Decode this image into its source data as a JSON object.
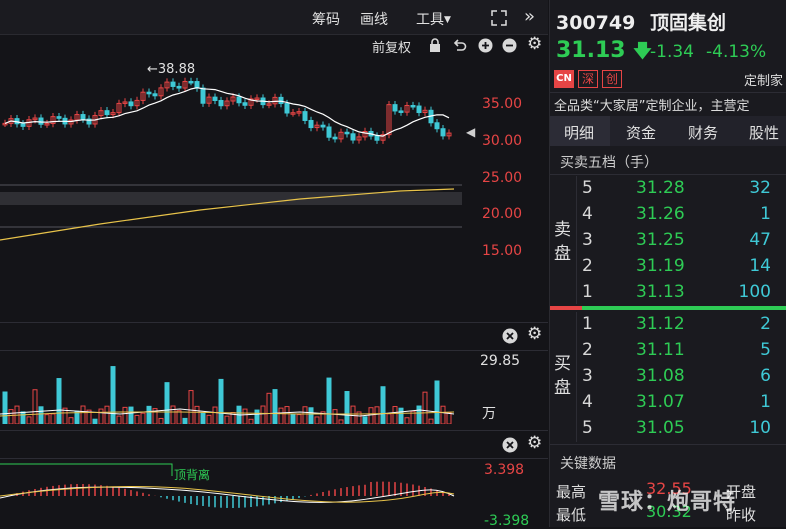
{
  "toolbar": {
    "chip_label": "筹码",
    "line_label": "画线",
    "tools_label": "工具",
    "adjust_label": "前复权"
  },
  "price_axis": [
    "35.00",
    "30.00",
    "25.00",
    "20.00",
    "15.00"
  ],
  "peak_label": "←38.88",
  "volume_axis": {
    "top": "29.85",
    "unit": "万"
  },
  "macd_axis": {
    "top": "3.398",
    "bottom": "-3.398",
    "annotation": "顶背离"
  },
  "quote": {
    "code": "300749",
    "name": "顶固集创",
    "price": "31.13",
    "change": "-1.34",
    "change_pct": "-4.13%",
    "badges": [
      "CN",
      "深",
      "创"
    ],
    "tag": "定制家",
    "desc": "全品类“大家居”定制企业，主营定"
  },
  "tabs": [
    "明细",
    "资金",
    "财务",
    "股性"
  ],
  "orderbook": {
    "title": "买卖五档（手）",
    "sell_label": [
      "卖",
      "盘"
    ],
    "buy_label": [
      "买",
      "盘"
    ],
    "sell": [
      {
        "level": "5",
        "price": "31.28",
        "vol": "32"
      },
      {
        "level": "4",
        "price": "31.26",
        "vol": "1"
      },
      {
        "level": "3",
        "price": "31.25",
        "vol": "47"
      },
      {
        "level": "2",
        "price": "31.19",
        "vol": "14"
      },
      {
        "level": "1",
        "price": "31.13",
        "vol": "100"
      }
    ],
    "buy": [
      {
        "level": "1",
        "price": "31.12",
        "vol": "2"
      },
      {
        "level": "2",
        "price": "31.11",
        "vol": "5"
      },
      {
        "level": "3",
        "price": "31.08",
        "vol": "6"
      },
      {
        "level": "4",
        "price": "31.07",
        "vol": "1"
      },
      {
        "level": "5",
        "price": "31.05",
        "vol": "10"
      }
    ]
  },
  "key_data": {
    "title": "关键数据",
    "high_label": "最高",
    "high": "32.55",
    "low_label": "最低",
    "low": "30.32",
    "open_label": "开盘",
    "prev_label": "昨收"
  },
  "watermark": "雪球：炮哥特",
  "colors": {
    "up": "#e64545",
    "down": "#2ecc55",
    "cyan": "#3fc9d6",
    "ma": "#ffffff",
    "ma_long": "#e8c34a"
  }
}
